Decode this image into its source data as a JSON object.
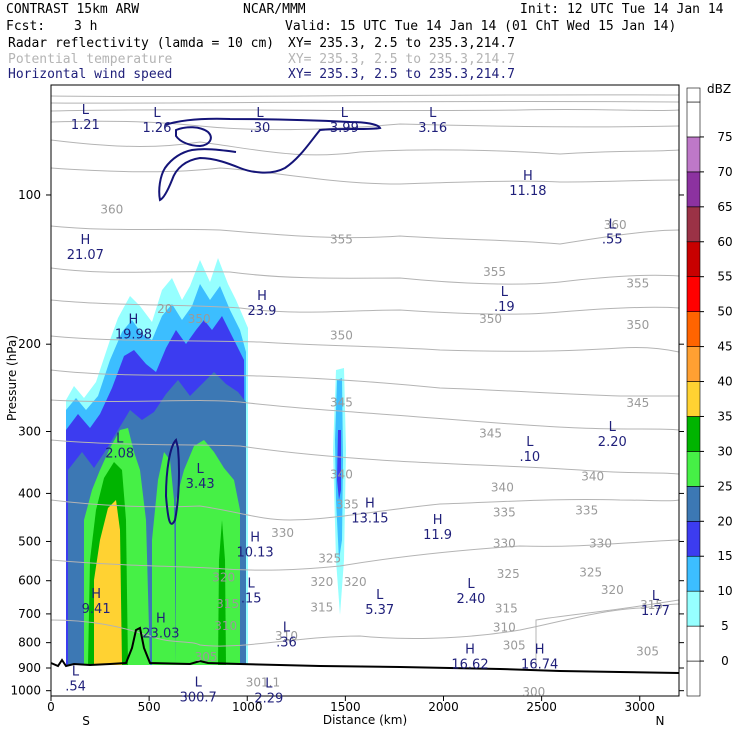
{
  "header": {
    "model": "CONTRAST 15km ARW",
    "org": "NCAR/MMM",
    "init": "Init: 12 UTC Tue 14 Jan 14",
    "fcst_label": "Fcst:",
    "fcst_value": "3 h",
    "valid": "Valid: 15 UTC Tue 14 Jan 14 (01 ChT Wed 15 Jan 14)",
    "fields": [
      {
        "name": "Radar reflectivity (lamda = 10 cm)",
        "xy": "XY= 235.3,  2.5 to 235.3,214.7",
        "color": "#000000"
      },
      {
        "name": "Potential temperature",
        "xy": "XY= 235.3,  2.5 to 235.3,214.7",
        "color": "#b4b4b4"
      },
      {
        "name": "Horizontal wind speed",
        "xy": "XY= 235.3,  2.5 to 235.3,214.7",
        "color": "#1f1f7a"
      }
    ]
  },
  "chart_data": {
    "type": "heatmap",
    "xlabel": "Distance (km)",
    "ylabel": "Pressure (hPa)",
    "xlim": [
      0,
      3200
    ],
    "ylim": [
      1025,
      60
    ],
    "y_scale": "log",
    "x_ticks": [
      "0",
      "500",
      "1000",
      "1500",
      "2000",
      "2500",
      "3000"
    ],
    "x_tick_values": [
      0,
      500,
      1000,
      1500,
      2000,
      2500,
      3000
    ],
    "y_ticks": [
      "100",
      "200",
      "300",
      "400",
      "500",
      "600",
      "700",
      "800",
      "900",
      "1000"
    ],
    "y_tick_values": [
      100,
      200,
      300,
      400,
      500,
      600,
      700,
      800,
      900,
      1000
    ],
    "end_labels": {
      "left": "S",
      "right": "N"
    },
    "colorbar": {
      "unit": "dBZ",
      "levels": [
        "0",
        "5",
        "10",
        "15",
        "20",
        "25",
        "30",
        "35",
        "40",
        "45",
        "50",
        "55",
        "60",
        "65",
        "70",
        "75"
      ],
      "colors": [
        "#ffffff",
        "#ffffff",
        "#96ffff",
        "#3cbeff",
        "#3c3cf0",
        "#3c78b4",
        "#46f046",
        "#00b400",
        "#ffd232",
        "#ffa032",
        "#ff6400",
        "#ff0000",
        "#c80000",
        "#9b3246",
        "#8c32a0",
        "#be78c8",
        "#ffffff"
      ]
    },
    "theta_labels": [
      {
        "text": "360",
        "x": 310,
        "p": 107
      },
      {
        "text": "355",
        "x": 1480,
        "p": 123
      },
      {
        "text": "355",
        "x": 2260,
        "p": 143
      },
      {
        "text": "355",
        "x": 2990,
        "p": 151
      },
      {
        "text": "360",
        "x": 2875,
        "p": 115
      },
      {
        "text": "350",
        "x": 755,
        "p": 178
      },
      {
        "text": "350",
        "x": 1480,
        "p": 192
      },
      {
        "text": "350",
        "x": 2240,
        "p": 178
      },
      {
        "text": "350",
        "x": 2990,
        "p": 183
      },
      {
        "text": "345",
        "x": 1480,
        "p": 262
      },
      {
        "text": "345",
        "x": 2240,
        "p": 303
      },
      {
        "text": "345",
        "x": 2990,
        "p": 263
      },
      {
        "text": "340",
        "x": 1480,
        "p": 366
      },
      {
        "text": "340",
        "x": 2300,
        "p": 389
      },
      {
        "text": "340",
        "x": 2760,
        "p": 370
      },
      {
        "text": "335",
        "x": 1510,
        "p": 421
      },
      {
        "text": "335",
        "x": 2310,
        "p": 437
      },
      {
        "text": "335",
        "x": 2730,
        "p": 433
      },
      {
        "text": "330",
        "x": 1180,
        "p": 481
      },
      {
        "text": "330",
        "x": 2310,
        "p": 505
      },
      {
        "text": "330",
        "x": 2800,
        "p": 505
      },
      {
        "text": "325",
        "x": 1420,
        "p": 541
      },
      {
        "text": "325",
        "x": 2330,
        "p": 581
      },
      {
        "text": "325",
        "x": 2750,
        "p": 578
      },
      {
        "text": "320",
        "x": 1380,
        "p": 603
      },
      {
        "text": "320",
        "x": 1550,
        "p": 604
      },
      {
        "text": "320",
        "x": 2860,
        "p": 626
      },
      {
        "text": "315",
        "x": 1380,
        "p": 680
      },
      {
        "text": "315",
        "x": 2320,
        "p": 682
      },
      {
        "text": "315",
        "x": 3060,
        "p": 671
      },
      {
        "text": "310",
        "x": 1200,
        "p": 775
      },
      {
        "text": "310",
        "x": 2310,
        "p": 745
      },
      {
        "text": "305",
        "x": 790,
        "p": 855
      },
      {
        "text": "305",
        "x": 2360,
        "p": 810
      },
      {
        "text": "305",
        "x": 3040,
        "p": 833
      },
      {
        "text": "301.1",
        "x": 1080,
        "p": 963
      },
      {
        "text": "300",
        "x": 2460,
        "p": 1005
      },
      {
        "text": "320",
        "x": 880,
        "p": 591
      },
      {
        "text": "315",
        "x": 900,
        "p": 668
      },
      {
        "text": "310",
        "x": 890,
        "p": 741
      },
      {
        "text": "20",
        "x": 580,
        "p": 170
      }
    ],
    "extrema": [
      {
        "text": "L",
        "val": "1.21",
        "x": 175,
        "p": 70
      },
      {
        "text": "L",
        "val": "1.26",
        "x": 540,
        "p": 71
      },
      {
        "text": "L",
        "val": ".30",
        "x": 1065,
        "p": 71
      },
      {
        "text": "L",
        "val": "3.99",
        "x": 1495,
        "p": 71
      },
      {
        "text": "L",
        "val": "3.16",
        "x": 1945,
        "p": 71
      },
      {
        "text": "H",
        "val": "11.18",
        "x": 2430,
        "p": 95
      },
      {
        "text": "L",
        "val": ".55",
        "x": 2860,
        "p": 119
      },
      {
        "text": "H",
        "val": "21.07",
        "x": 175,
        "p": 128
      },
      {
        "text": "H",
        "val": "23.9",
        "x": 1075,
        "p": 166
      },
      {
        "text": "L",
        "val": ".19",
        "x": 2310,
        "p": 163
      },
      {
        "text": "H",
        "val": "19.98",
        "x": 420,
        "p": 185
      },
      {
        "text": "L",
        "val": "2.08",
        "x": 350,
        "p": 322
      },
      {
        "text": "L",
        "val": "3.43",
        "x": 760,
        "p": 371
      },
      {
        "text": "L",
        "val": ".10",
        "x": 2440,
        "p": 327
      },
      {
        "text": "L",
        "val": "2.20",
        "x": 2860,
        "p": 305
      },
      {
        "text": "H",
        "val": "13.15",
        "x": 1625,
        "p": 435
      },
      {
        "text": "H",
        "val": "11.9",
        "x": 1970,
        "p": 470
      },
      {
        "text": "H",
        "val": "10.13",
        "x": 1040,
        "p": 509
      },
      {
        "text": "L",
        "val": ".15",
        "x": 1020,
        "p": 631
      },
      {
        "text": "L",
        "val": "2.40",
        "x": 2140,
        "p": 633
      },
      {
        "text": "H",
        "val": "9.41",
        "x": 230,
        "p": 662
      },
      {
        "text": "L",
        "val": "5.37",
        "x": 1675,
        "p": 665
      },
      {
        "text": "L",
        "val": "1.77",
        "x": 3080,
        "p": 668
      },
      {
        "text": "H",
        "val": "23.03",
        "x": 560,
        "p": 743
      },
      {
        "text": "L",
        "val": ".36",
        "x": 1200,
        "p": 773
      },
      {
        "text": "H",
        "val": "16.62",
        "x": 2135,
        "p": 858
      },
      {
        "text": "H",
        "val": "16.74",
        "x": 2490,
        "p": 858
      },
      {
        "text": "L",
        "val": ".54",
        "x": 125,
        "p": 950
      },
      {
        "text": "L",
        "val": "2.29",
        "x": 1110,
        "p": 1003
      },
      {
        "text": "L",
        "val": "300.7",
        "x": 750,
        "p": 998
      }
    ]
  }
}
